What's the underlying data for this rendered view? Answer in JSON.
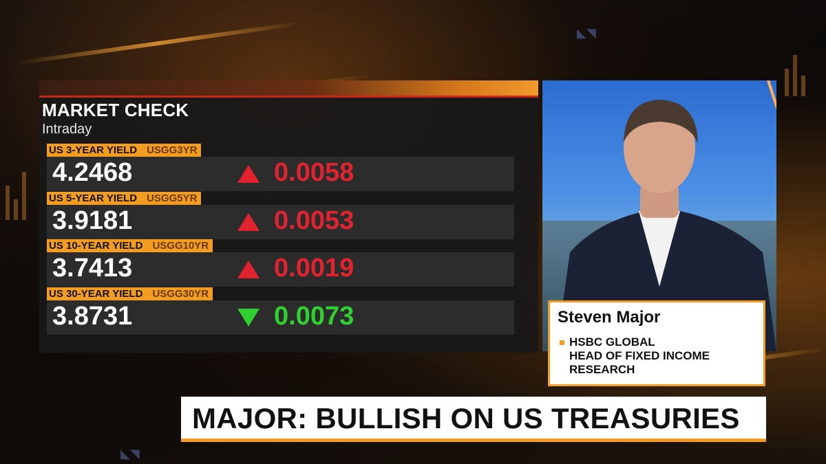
{
  "panel": {
    "title": "MARKET CHECK",
    "subtitle": "Intraday",
    "rows": [
      {
        "label": "US 3-YEAR YIELD",
        "ticker": "USGG3YR",
        "value": "4.2468",
        "direction": "up",
        "change": "0.0058"
      },
      {
        "label": "US 5-YEAR YIELD",
        "ticker": "USGG5YR",
        "value": "3.9181",
        "direction": "up",
        "change": "0.0053"
      },
      {
        "label": "US 10-YEAR YIELD",
        "ticker": "USGG10YR",
        "value": "3.7413",
        "direction": "up",
        "change": "0.0019"
      },
      {
        "label": "US 30-YEAR YIELD",
        "ticker": "USGG30YR",
        "value": "3.8731",
        "direction": "down",
        "change": "0.0073"
      }
    ]
  },
  "namecard": {
    "name": "Steven Major",
    "title_lines": [
      "HSBC GLOBAL",
      "HEAD OF FIXED INCOME",
      "RESEARCH"
    ]
  },
  "headline": "MAJOR: BULLISH ON US TREASURIES",
  "colors": {
    "accent": "#f39c1f",
    "up": "#e0232e",
    "down": "#2fd02f",
    "brand_red": "#c9261d"
  }
}
